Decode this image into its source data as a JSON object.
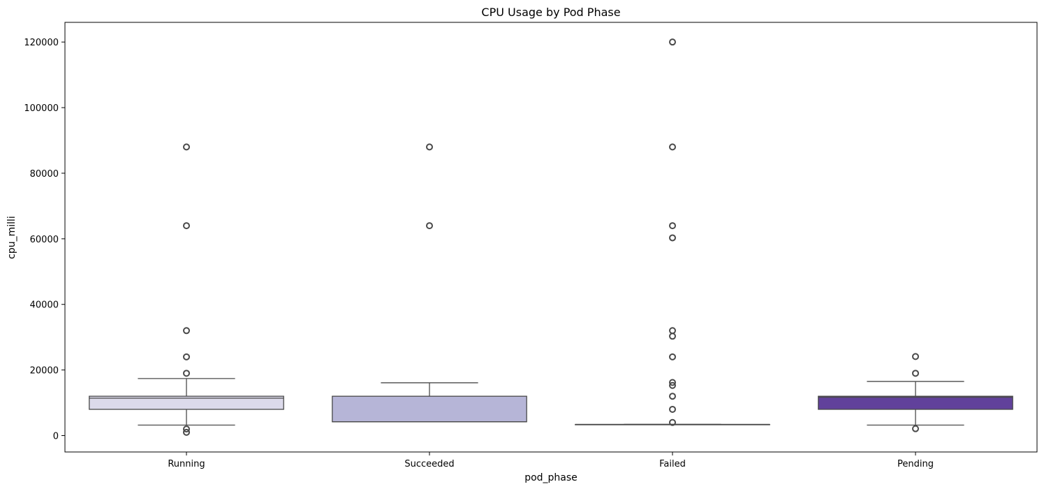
{
  "chart_data": {
    "type": "boxplot",
    "title": "CPU Usage by Pod Phase",
    "xlabel": "pod_phase",
    "ylabel": "cpu_milli",
    "ylim": [
      -5000,
      126000
    ],
    "yticks": [
      0,
      20000,
      40000,
      60000,
      80000,
      100000,
      120000
    ],
    "grid": false,
    "categories": [
      "Running",
      "Succeeded",
      "Failed",
      "Pending"
    ],
    "colors": [
      "#dcdaeb",
      "#b6b5d7",
      "#6d5aaa",
      "#61419b"
    ],
    "boxes": [
      {
        "category": "Running",
        "whislo": 3200,
        "q1": 8000,
        "med": 11400,
        "q3": 12000,
        "whishi": 17400,
        "fliers": [
          1000,
          2000,
          19000,
          24000,
          32000,
          64000,
          88000
        ],
        "color": "#dcdaeb"
      },
      {
        "category": "Succeeded",
        "whislo": 4200,
        "q1": 4200,
        "med": 4200,
        "q3": 12000,
        "whishi": 16100,
        "fliers": [
          64000,
          88000
        ],
        "color": "#b6b5d7"
      },
      {
        "category": "Failed",
        "whislo": 3400,
        "q1": 3400,
        "med": 3400,
        "q3": 3400,
        "whishi": 3400,
        "fliers": [
          4000,
          8000,
          12000,
          15300,
          16200,
          24000,
          30300,
          32000,
          60300,
          64000,
          88000,
          120000
        ],
        "color": "#6d5aaa"
      },
      {
        "category": "Pending",
        "whislo": 3200,
        "q1": 8000,
        "med": 11700,
        "q3": 12000,
        "whishi": 16500,
        "fliers": [
          2100,
          19000,
          24100
        ],
        "color": "#61419b"
      }
    ]
  }
}
